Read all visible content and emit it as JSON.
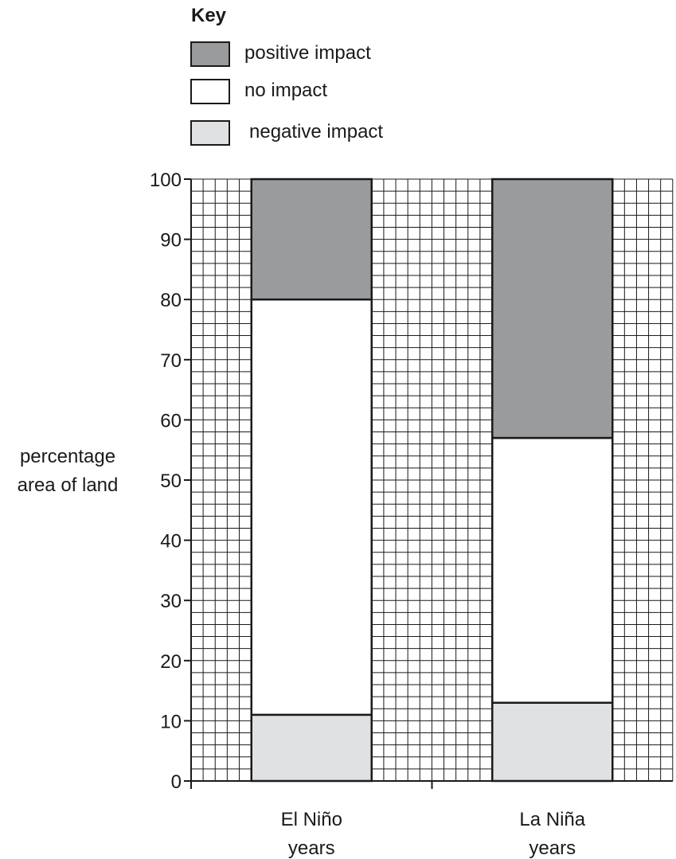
{
  "legend": {
    "title": "Key",
    "items": [
      {
        "label": "positive impact",
        "color": "#9a9b9d"
      },
      {
        "label": "no impact",
        "color": "#ffffff"
      },
      {
        "label": "negative impact",
        "color": "#e0e1e2"
      }
    ]
  },
  "chart_data": {
    "type": "bar",
    "stacked": true,
    "categories": [
      [
        "El Niño",
        "years"
      ],
      [
        "La Niña",
        "years"
      ]
    ],
    "ylabel": [
      "percentage",
      "area of land"
    ],
    "ylim": [
      0,
      100
    ],
    "yticks": [
      0,
      10,
      20,
      30,
      40,
      50,
      60,
      70,
      80,
      90,
      100
    ],
    "grid": true,
    "series": [
      {
        "name": "negative impact",
        "color": "#e0e1e2",
        "values": [
          11,
          13
        ]
      },
      {
        "name": "no impact",
        "color": "#ffffff",
        "values": [
          69,
          44
        ]
      },
      {
        "name": "positive impact",
        "color": "#9a9b9d",
        "values": [
          20,
          43
        ]
      }
    ]
  }
}
